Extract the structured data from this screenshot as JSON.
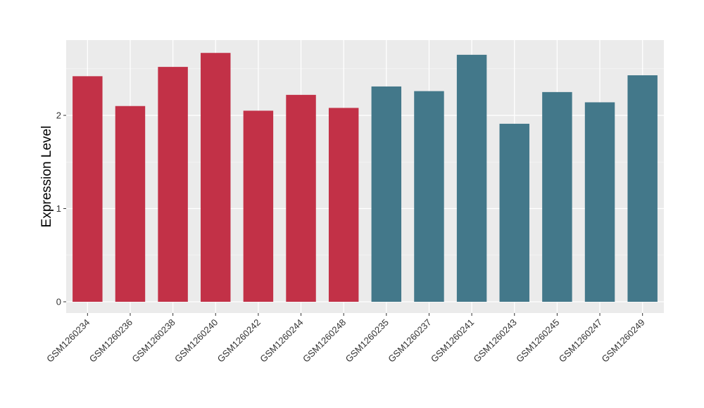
{
  "chart_data": {
    "type": "bar",
    "title": "",
    "xlabel": "",
    "ylabel": "Expression Level",
    "ylim": [
      0,
      2.78
    ],
    "yticks": [
      0,
      1,
      2
    ],
    "grid": true,
    "legend": "none",
    "categories": [
      "GSM1260234",
      "GSM1260236",
      "GSM1260238",
      "GSM1260240",
      "GSM1260242",
      "GSM1260244",
      "GSM1260248",
      "GSM1260235",
      "GSM1260237",
      "GSM1260241",
      "GSM1260243",
      "GSM1260245",
      "GSM1260247",
      "GSM1260249"
    ],
    "values": [
      2.42,
      2.1,
      2.52,
      2.67,
      2.05,
      2.22,
      2.08,
      2.31,
      2.26,
      2.65,
      1.91,
      2.25,
      2.14,
      2.43
    ],
    "bar_colors": [
      "#c23147",
      "#c23147",
      "#c23147",
      "#c23147",
      "#c23147",
      "#c23147",
      "#c23147",
      "#43788a",
      "#43788a",
      "#43788a",
      "#43788a",
      "#43788a",
      "#43788a",
      "#43788a"
    ]
  }
}
